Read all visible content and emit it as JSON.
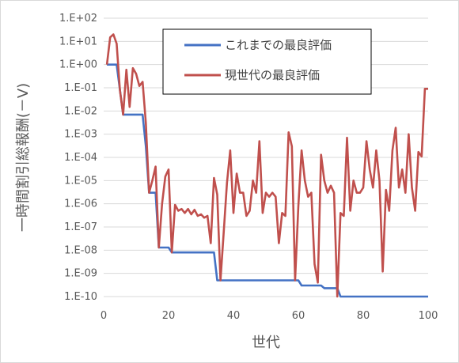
{
  "chart_data": {
    "type": "line",
    "title": "",
    "xlabel": "世代",
    "ylabel": "一時間割引総報酬(－V)",
    "x_range": [
      0,
      100
    ],
    "x_ticks": [
      "0",
      "20",
      "40",
      "60",
      "80",
      "100"
    ],
    "y_scale": "log",
    "y_range": [
      1e-10,
      100
    ],
    "y_ticks": [
      "1.E+02",
      "1.E+01",
      "1.E+00",
      "1.E-01",
      "1.E-02",
      "1.E-03",
      "1.E-04",
      "1.E-05",
      "1.E-06",
      "1.E-07",
      "1.E-08",
      "1.E-09",
      "1.E-10"
    ],
    "grid": "horizontal",
    "legend_position": "top-right",
    "series": [
      {
        "name": "これまでの最良評価",
        "color": "#4472C4",
        "x": [
          1,
          4,
          6,
          12,
          13,
          14,
          16,
          17,
          20,
          21,
          34,
          35,
          60,
          61,
          67,
          68,
          72,
          73,
          100
        ],
        "y": [
          1.0,
          1.0,
          0.007,
          0.007,
          0.0003,
          3e-06,
          3e-06,
          1.3e-08,
          1.3e-08,
          8e-09,
          8e-09,
          5e-10,
          5e-10,
          3e-10,
          3e-10,
          2.3e-10,
          2.3e-10,
          1e-10,
          1e-10
        ]
      },
      {
        "name": "現世代の最良評価",
        "color": "#C0504D",
        "x": [
          1,
          2,
          3,
          4,
          5,
          6,
          7,
          8,
          9,
          10,
          11,
          12,
          13,
          14,
          15,
          16,
          17,
          18,
          19,
          20,
          21,
          22,
          23,
          24,
          25,
          26,
          27,
          28,
          29,
          30,
          31,
          32,
          33,
          34,
          35,
          36,
          37,
          38,
          39,
          40,
          41,
          42,
          43,
          44,
          45,
          46,
          47,
          48,
          49,
          50,
          51,
          52,
          53,
          54,
          55,
          56,
          57,
          58,
          59,
          60,
          61,
          62,
          63,
          64,
          65,
          66,
          67,
          68,
          69,
          70,
          71,
          72,
          73,
          74,
          75,
          76,
          77,
          78,
          79,
          80,
          81,
          82,
          83,
          84,
          85,
          86,
          87,
          88,
          89,
          90,
          91,
          92,
          93,
          94,
          95,
          96,
          97,
          98,
          99,
          100
        ],
        "y": [
          1.0,
          15,
          20,
          8,
          0.08,
          0.007,
          0.6,
          0.015,
          0.7,
          0.4,
          0.12,
          0.18,
          0.003,
          3e-06,
          1e-05,
          4e-05,
          1.3e-08,
          1e-06,
          1.5e-05,
          3e-05,
          8e-09,
          9e-07,
          5e-07,
          6e-07,
          4e-07,
          6e-07,
          3.5e-07,
          5.5e-07,
          3e-07,
          3.5e-07,
          2.5e-07,
          3e-07,
          2e-08,
          1.3e-05,
          2.5e-06,
          5e-10,
          6e-08,
          8e-06,
          0.0002,
          4e-07,
          2e-05,
          3e-06,
          3e-06,
          3e-07,
          5e-07,
          1e-05,
          3e-06,
          0.0005,
          4e-07,
          3e-06,
          2e-06,
          3e-06,
          2e-06,
          2e-08,
          4e-07,
          3e-07,
          0.0012,
          0.0003,
          5e-10,
          8e-07,
          0.0002,
          1e-05,
          2e-06,
          3e-06,
          2.5e-09,
          4e-10,
          0.00013,
          1e-05,
          3e-06,
          6e-06,
          3e-06,
          1e-10,
          4e-07,
          3e-07,
          0.0007,
          5e-07,
          1e-05,
          3e-06,
          3e-06,
          5e-06,
          0.0005,
          3e-05,
          5e-06,
          0.0002,
          1e-05,
          1.2e-09,
          4e-06,
          5e-07,
          0.0002,
          0.0019,
          5e-06,
          3e-05,
          3e-06,
          0.001,
          5e-06,
          5e-07,
          0.00017,
          0.00011,
          0.09,
          0.09
        ]
      }
    ]
  }
}
